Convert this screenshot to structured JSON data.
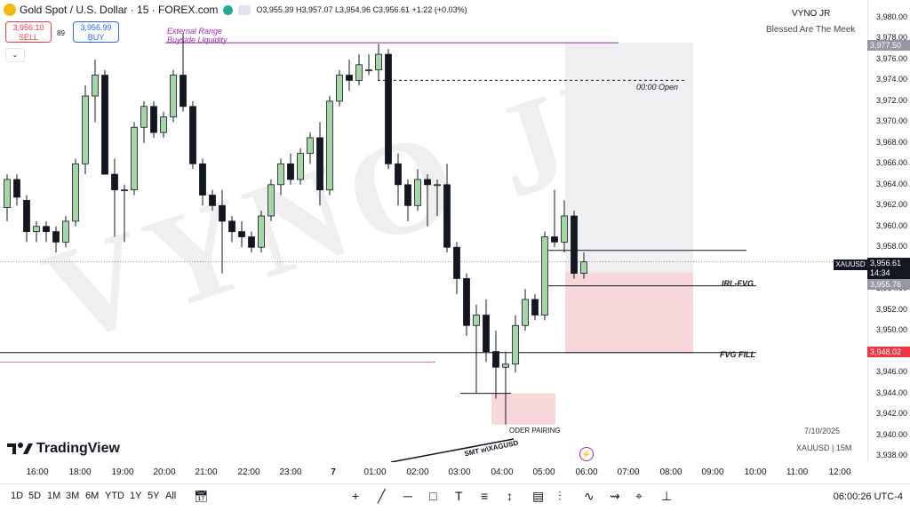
{
  "header": {
    "title": "Gold Spot / U.S. Dollar · 15 · FOREX.com",
    "ohlc": "O3,955.39 H3,957.07 L3,954.96 C3,956.61 +1.22 (+0.03%)"
  },
  "trade": {
    "sell_price": "3,956.10",
    "sell_label": "SELL",
    "spread": "89",
    "buy_price": "3,956.99",
    "buy_label": "BUY"
  },
  "watermark": {
    "text": "VYNO JR"
  },
  "account": {
    "name": "VYNO JR",
    "tagline": "Blessed Are The Meek"
  },
  "annotations": {
    "external_range": "External Range",
    "buyside": "Buyside Liquidity",
    "open": "00:00 Open",
    "irl_fvg": "IRL-FVG",
    "fvg_fill": "FVG FILL",
    "oder_pairing": "ODER PAIRING",
    "smt": "SMT w\\XAGUSD"
  },
  "price_axis": {
    "ticks": [
      "3,980.00",
      "3,978.00",
      "3,976.00",
      "3,974.00",
      "3,972.00",
      "3,970.00",
      "3,968.00",
      "3,966.00",
      "3,964.00",
      "3,962.00",
      "3,960.00",
      "3,958.00",
      "3,956.00",
      "3,954.00",
      "3,952.00",
      "3,950.00",
      "3,948.00",
      "3,946.00",
      "3,944.00",
      "3,942.00",
      "3,940.00",
      "3,938.00"
    ],
    "tag_high": "3,977.50",
    "tag_symbol": "XAUUSD",
    "tag_current": "3,956.61",
    "tag_countdown": "14:34",
    "tag_fvg_top": "3,955.76",
    "tag_fvg_fill": "3,948.02"
  },
  "time_axis": [
    "16:00",
    "18:00",
    "19:00",
    "20:00",
    "21:00",
    "22:00",
    "23:00",
    "7",
    "01:00",
    "02:00",
    "03:00",
    "04:00",
    "05:00",
    "06:00",
    "07:00",
    "08:00",
    "09:00",
    "10:00",
    "11:00",
    "12:00"
  ],
  "info": {
    "date": "7/10/2025",
    "symbol_tf": "XAUUSD | 15M"
  },
  "logo": {
    "text": "TradingView"
  },
  "bottom": {
    "ranges": [
      "1D",
      "5D",
      "1M",
      "3M",
      "6M",
      "YTD",
      "1Y",
      "5Y",
      "All"
    ],
    "clock": "06:00:26 UTC-4"
  },
  "colors": {
    "bull": "#a5d6a7",
    "bear": "#131722",
    "fvg": "#f8d7da",
    "range": "#f0f0f3",
    "sell": "#f23645",
    "buy": "#2962ff"
  },
  "chart_data": {
    "type": "candlestick",
    "title": "Gold Spot / U.S. Dollar · 15 · FOREX.com",
    "ylim": [
      3937,
      3981
    ],
    "candles": [
      {
        "o": 3961.8,
        "h": 3965.0,
        "l": 3960.5,
        "c": 3964.5
      },
      {
        "o": 3964.5,
        "h": 3965.0,
        "l": 3962.0,
        "c": 3962.8
      },
      {
        "o": 3962.5,
        "h": 3963.0,
        "l": 3958.5,
        "c": 3959.5
      },
      {
        "o": 3959.5,
        "h": 3960.5,
        "l": 3958.5,
        "c": 3960.0
      },
      {
        "o": 3960.0,
        "h": 3960.5,
        "l": 3958.5,
        "c": 3959.5
      },
      {
        "o": 3959.5,
        "h": 3960.0,
        "l": 3957.5,
        "c": 3958.5
      },
      {
        "o": 3958.5,
        "h": 3961.0,
        "l": 3958.0,
        "c": 3960.5
      },
      {
        "o": 3960.5,
        "h": 3966.5,
        "l": 3960.0,
        "c": 3966.0
      },
      {
        "o": 3966.0,
        "h": 3973.5,
        "l": 3965.0,
        "c": 3972.5
      },
      {
        "o": 3972.5,
        "h": 3976.0,
        "l": 3970.0,
        "c": 3974.5
      },
      {
        "o": 3974.5,
        "h": 3975.0,
        "l": 3965.0,
        "c": 3965.0
      },
      {
        "o": 3965.0,
        "h": 3966.5,
        "l": 3959.0,
        "c": 3963.5
      },
      {
        "o": 3963.5,
        "h": 3964.0,
        "l": 3958.5,
        "c": 3963.5
      },
      {
        "o": 3963.5,
        "h": 3970.0,
        "l": 3963.0,
        "c": 3969.5
      },
      {
        "o": 3969.5,
        "h": 3972.0,
        "l": 3968.0,
        "c": 3971.5
      },
      {
        "o": 3971.5,
        "h": 3972.0,
        "l": 3968.5,
        "c": 3969.0
      },
      {
        "o": 3969.0,
        "h": 3971.0,
        "l": 3968.5,
        "c": 3970.5
      },
      {
        "o": 3970.5,
        "h": 3975.0,
        "l": 3970.0,
        "c": 3974.5
      },
      {
        "o": 3974.5,
        "h": 3978.5,
        "l": 3971.0,
        "c": 3971.5
      },
      {
        "o": 3971.5,
        "h": 3972.0,
        "l": 3965.5,
        "c": 3966.0
      },
      {
        "o": 3966.0,
        "h": 3966.5,
        "l": 3962.0,
        "c": 3963.0
      },
      {
        "o": 3963.0,
        "h": 3963.5,
        "l": 3961.5,
        "c": 3962.0
      },
      {
        "o": 3962.0,
        "h": 3963.5,
        "l": 3955.5,
        "c": 3960.5
      },
      {
        "o": 3960.5,
        "h": 3961.0,
        "l": 3958.5,
        "c": 3959.5
      },
      {
        "o": 3959.5,
        "h": 3960.5,
        "l": 3958.0,
        "c": 3959.0
      },
      {
        "o": 3959.0,
        "h": 3959.5,
        "l": 3957.5,
        "c": 3958.0
      },
      {
        "o": 3958.0,
        "h": 3961.5,
        "l": 3957.5,
        "c": 3961.0
      },
      {
        "o": 3961.0,
        "h": 3964.5,
        "l": 3960.5,
        "c": 3964.0
      },
      {
        "o": 3964.0,
        "h": 3966.5,
        "l": 3963.0,
        "c": 3966.0
      },
      {
        "o": 3966.0,
        "h": 3967.0,
        "l": 3964.0,
        "c": 3964.5
      },
      {
        "o": 3964.5,
        "h": 3967.5,
        "l": 3964.0,
        "c": 3967.0
      },
      {
        "o": 3967.0,
        "h": 3969.0,
        "l": 3966.0,
        "c": 3968.5
      },
      {
        "o": 3968.5,
        "h": 3970.0,
        "l": 3962.0,
        "c": 3963.5
      },
      {
        "o": 3963.5,
        "h": 3972.5,
        "l": 3963.0,
        "c": 3972.0
      },
      {
        "o": 3972.0,
        "h": 3975.0,
        "l": 3971.5,
        "c": 3974.5
      },
      {
        "o": 3974.5,
        "h": 3976.0,
        "l": 3973.0,
        "c": 3974.0
      },
      {
        "o": 3974.0,
        "h": 3976.5,
        "l": 3973.5,
        "c": 3975.5
      },
      {
        "o": 3975.0,
        "h": 3976.5,
        "l": 3974.5,
        "c": 3975.0
      },
      {
        "o": 3975.0,
        "h": 3977.5,
        "l": 3974.0,
        "c": 3976.5
      },
      {
        "o": 3976.5,
        "h": 3977.0,
        "l": 3965.5,
        "c": 3966.0
      },
      {
        "o": 3966.0,
        "h": 3967.0,
        "l": 3962.0,
        "c": 3964.0
      },
      {
        "o": 3964.0,
        "h": 3964.5,
        "l": 3960.5,
        "c": 3962.0
      },
      {
        "o": 3962.0,
        "h": 3965.5,
        "l": 3961.5,
        "c": 3964.5
      },
      {
        "o": 3964.5,
        "h": 3965.0,
        "l": 3960.0,
        "c": 3964.0
      },
      {
        "o": 3964.0,
        "h": 3964.5,
        "l": 3961.0,
        "c": 3964.0
      },
      {
        "o": 3964.0,
        "h": 3966.0,
        "l": 3957.5,
        "c": 3958.0
      },
      {
        "o": 3958.0,
        "h": 3958.5,
        "l": 3953.5,
        "c": 3955.0
      },
      {
        "o": 3955.0,
        "h": 3955.5,
        "l": 3949.5,
        "c": 3950.5
      },
      {
        "o": 3950.5,
        "h": 3952.5,
        "l": 3944.0,
        "c": 3951.5
      },
      {
        "o": 3951.5,
        "h": 3953.0,
        "l": 3947.0,
        "c": 3948.0
      },
      {
        "o": 3948.0,
        "h": 3950.0,
        "l": 3943.5,
        "c": 3946.5
      },
      {
        "o": 3946.5,
        "h": 3948.0,
        "l": 3941.0,
        "c": 3946.8
      },
      {
        "o": 3946.8,
        "h": 3951.5,
        "l": 3946.0,
        "c": 3950.5
      },
      {
        "o": 3950.5,
        "h": 3954.0,
        "l": 3950.0,
        "c": 3953.0
      },
      {
        "o": 3953.0,
        "h": 3953.5,
        "l": 3951.0,
        "c": 3951.5
      },
      {
        "o": 3951.5,
        "h": 3959.5,
        "l": 3951.0,
        "c": 3959.0
      },
      {
        "o": 3959.0,
        "h": 3963.5,
        "l": 3958.0,
        "c": 3958.5
      },
      {
        "o": 3958.5,
        "h": 3962.5,
        "l": 3957.5,
        "c": 3961.0
      },
      {
        "o": 3961.0,
        "h": 3961.5,
        "l": 3955.0,
        "c": 3955.5
      },
      {
        "o": 3955.5,
        "h": 3957.5,
        "l": 3955.0,
        "c": 3956.6
      }
    ],
    "levels": [
      {
        "label": "External Range Buyside Liquidity",
        "price": 3977.6
      },
      {
        "label": "00:00 Open",
        "price": 3974.0
      },
      {
        "label": "IRL-FVG",
        "price": 3957.7
      },
      {
        "label": "IRL-FVG",
        "price": 3954.3
      },
      {
        "label": "FVG FILL",
        "price": 3947.9
      }
    ]
  }
}
